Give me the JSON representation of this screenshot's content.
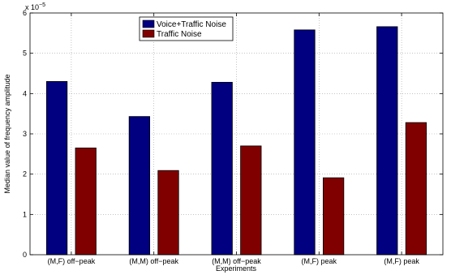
{
  "chart_data": {
    "type": "bar",
    "categories": [
      "(M,F) off−peak",
      "(M,M) off−peak",
      "(M,M) off−peak",
      "(M,F) peak",
      "(M,F) peak"
    ],
    "series": [
      {
        "name": "Voice+Traffic Noise",
        "values": [
          4.3,
          3.43,
          4.28,
          5.58,
          5.66
        ],
        "color": "#000080"
      },
      {
        "name": "Traffic Noise",
        "values": [
          2.65,
          2.09,
          2.7,
          1.91,
          3.28
        ],
        "color": "#800000"
      }
    ],
    "xlabel": "Experiments",
    "ylabel": "Median value of frequency amplitude",
    "yscale_label": "x 10",
    "yscale_exp": "−5",
    "ylim": [
      0,
      6
    ],
    "yticks": [
      0,
      1,
      2,
      3,
      4,
      5,
      6
    ],
    "grid": true,
    "legend_position": "top-center"
  }
}
